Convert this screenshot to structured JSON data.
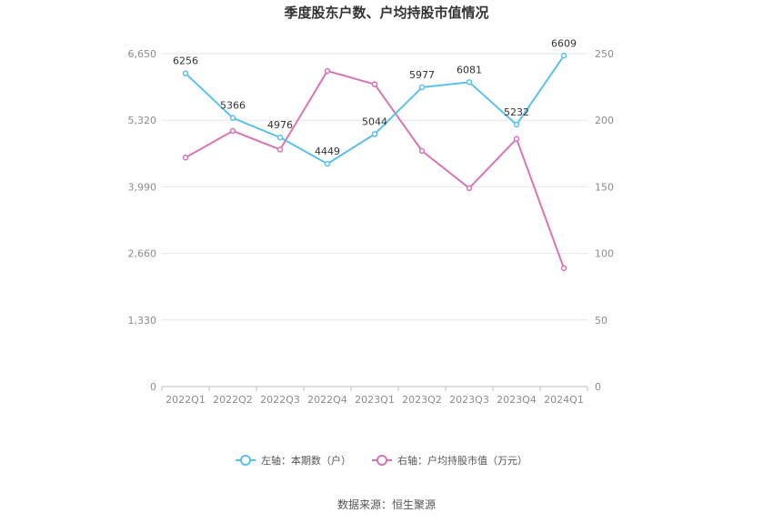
{
  "chart_data": {
    "type": "line",
    "title": "季度股东户数、户均持股市值情况",
    "categories": [
      "2022Q1",
      "2022Q2",
      "2022Q3",
      "2022Q4",
      "2023Q1",
      "2023Q2",
      "2023Q3",
      "2023Q4",
      "2024Q1"
    ],
    "left_axis": {
      "ticks": [
        "0",
        "1,330",
        "2,660",
        "3,990",
        "5,320",
        "6,650"
      ],
      "ylim": [
        0,
        6650
      ]
    },
    "right_axis": {
      "ticks": [
        "0",
        "50",
        "100",
        "150",
        "200",
        "250"
      ],
      "ylim": [
        0,
        250
      ]
    },
    "series": [
      {
        "name": "左轴：本期数（户）",
        "axis": "left",
        "color": "#5bc0eb",
        "values": [
          6256,
          5366,
          4976,
          4449,
          5044,
          5977,
          6081,
          5232,
          6609
        ],
        "labels": [
          "6256",
          "5366",
          "4976",
          "4449",
          "5044",
          "5977",
          "6081",
          "5232",
          "6609"
        ]
      },
      {
        "name": "右轴：户均持股市值（万元）",
        "axis": "right",
        "color": "#d874b4",
        "values": [
          172,
          192,
          178,
          237,
          227,
          177,
          149,
          186,
          89
        ]
      }
    ],
    "grid": true,
    "legend": "bottom-center"
  },
  "source": "数据来源：恒生聚源"
}
